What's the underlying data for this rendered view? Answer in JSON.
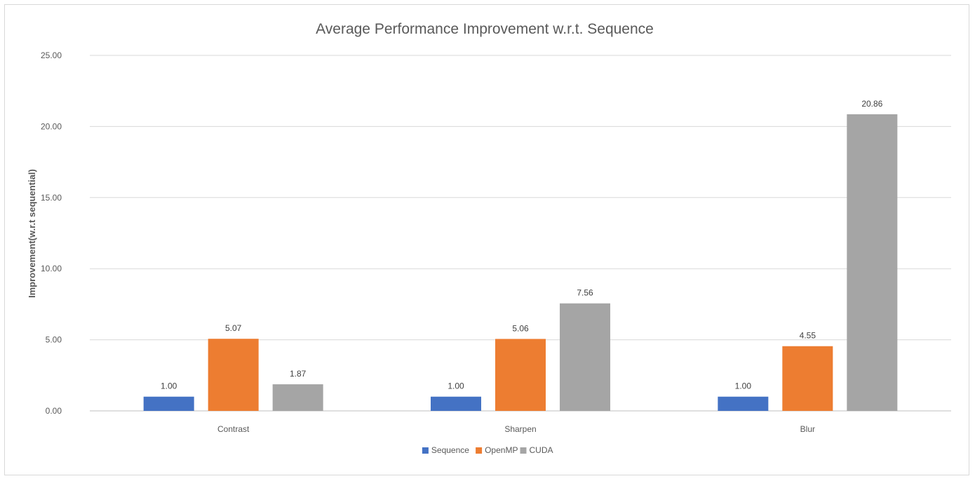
{
  "chart_data": {
    "type": "bar",
    "title": "Average Performance Improvement w.r.t. Sequence",
    "xlabel": "",
    "ylabel": "Improvement(w.r.t sequential)",
    "categories": [
      "Contrast",
      "Sharpen",
      "Blur"
    ],
    "series": [
      {
        "name": "Sequence",
        "color": "#4472c4",
        "values": [
          1.0,
          1.0,
          1.0
        ],
        "labels": [
          "1.00",
          "1.00",
          "1.00"
        ]
      },
      {
        "name": "OpenMP",
        "color": "#ed7d31",
        "values": [
          5.07,
          5.06,
          4.55
        ],
        "labels": [
          "5.07",
          "5.06",
          "4.55"
        ]
      },
      {
        "name": "CUDA",
        "color": "#a5a5a5",
        "values": [
          1.87,
          7.56,
          20.86
        ],
        "labels": [
          "1.87",
          "7.56",
          "20.86"
        ]
      }
    ],
    "ylim": [
      0,
      25
    ],
    "yticks": [
      0,
      5,
      10,
      15,
      20,
      25
    ],
    "ytick_labels": [
      "0.00",
      "5.00",
      "10.00",
      "15.00",
      "20.00",
      "25.00"
    ],
    "grid": true,
    "legend_position": "bottom",
    "colors": {
      "gridline": "#d9d9d9",
      "axis": "#bfbfbf"
    }
  }
}
